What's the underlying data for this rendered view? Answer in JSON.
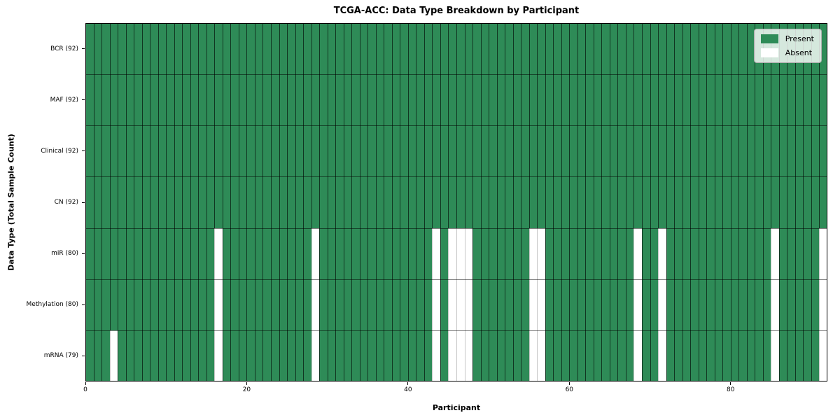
{
  "chart_data": {
    "type": "heatmap",
    "title": "TCGA-ACC: Data Type Breakdown by Participant",
    "xlabel": "Participant",
    "ylabel": "Data Type (Total Sample Count)",
    "n_participants": 92,
    "xlim": [
      0,
      92
    ],
    "x_ticks": [
      0,
      20,
      40,
      60,
      80
    ],
    "legend_position": "upper right",
    "rows": [
      {
        "label": "BCR (92)",
        "data_type": "BCR",
        "present_count": 92,
        "absent_participants": []
      },
      {
        "label": "MAF (92)",
        "data_type": "MAF",
        "present_count": 92,
        "absent_participants": []
      },
      {
        "label": "Clinical (92)",
        "data_type": "Clinical",
        "present_count": 92,
        "absent_participants": []
      },
      {
        "label": "CN (92)",
        "data_type": "CN",
        "present_count": 92,
        "absent_participants": []
      },
      {
        "label": "miR (80)",
        "data_type": "miR",
        "present_count": 80,
        "absent_participants": [
          16,
          28,
          43,
          45,
          46,
          47,
          55,
          56,
          68,
          71,
          85,
          91
        ]
      },
      {
        "label": "Methylation (80)",
        "data_type": "Methylation",
        "present_count": 80,
        "absent_participants": [
          16,
          28,
          43,
          45,
          46,
          47,
          55,
          56,
          68,
          71,
          85,
          91
        ]
      },
      {
        "label": "mRNA (79)",
        "data_type": "mRNA",
        "present_count": 79,
        "absent_participants": [
          3,
          16,
          28,
          43,
          45,
          46,
          47,
          55,
          56,
          68,
          71,
          85,
          91
        ]
      }
    ],
    "legend": [
      {
        "label": "Present",
        "color": "#2e8b57"
      },
      {
        "label": "Absent",
        "color": "#ffffff"
      }
    ],
    "colors": {
      "present": "#2e8b57",
      "absent": "#ffffff",
      "present_cell_edge": "rgba(0,0,0,0.62)",
      "absent_cell_edge": "rgba(0,0,0,0.22)",
      "row_separator": "rgba(0,0,0,0.5)",
      "axis_line": "#000000",
      "legend_bg": "rgba(255,255,255,0.8)",
      "legend_border": "#b0b0b0"
    }
  }
}
